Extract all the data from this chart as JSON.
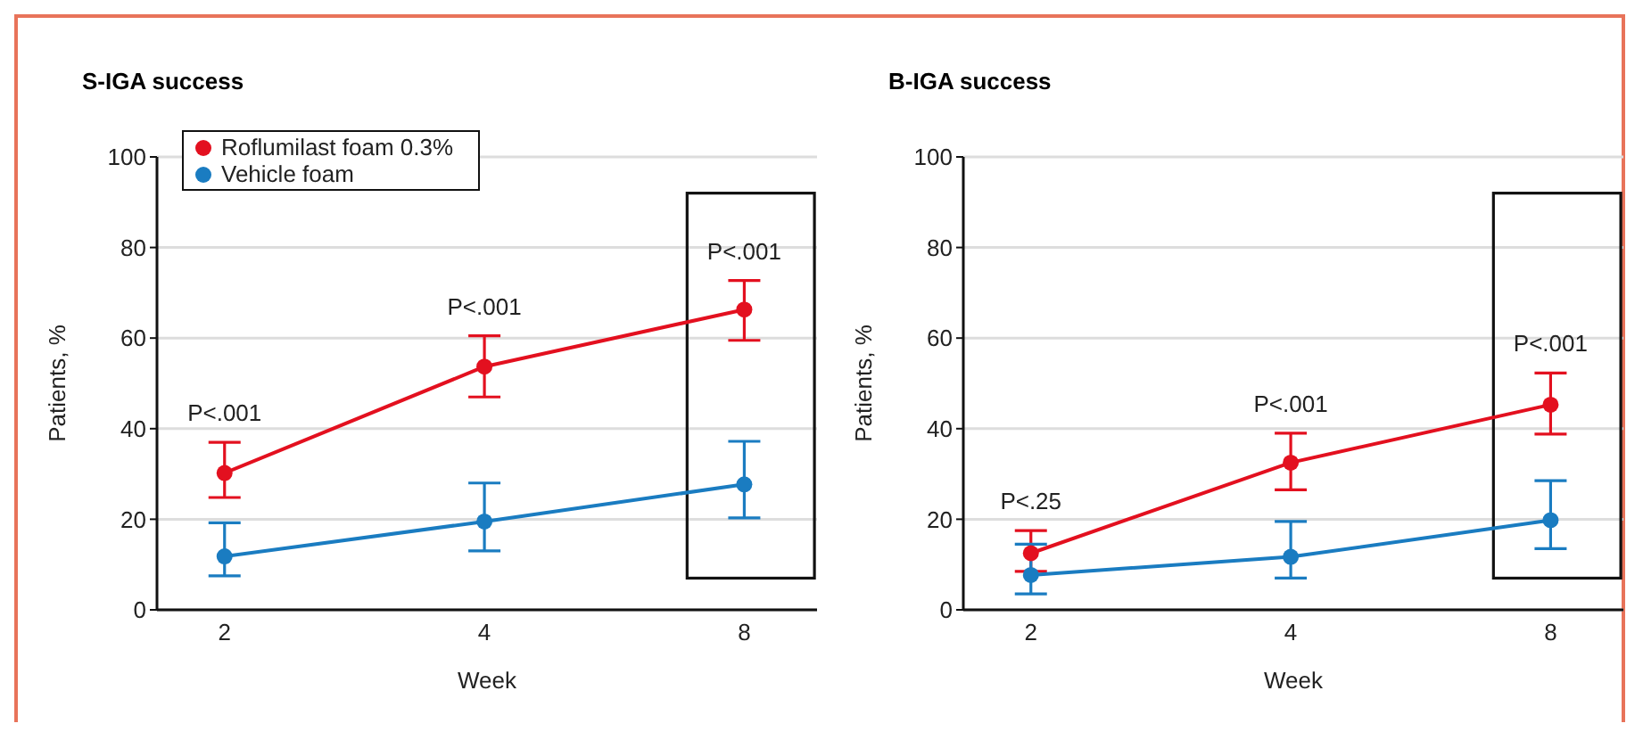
{
  "chart_data": [
    {
      "type": "line",
      "title": "S-IGA success",
      "xlabel": "Week",
      "ylabel": "Patients, %",
      "categories": [
        "2",
        "4",
        "8"
      ],
      "series": [
        {
          "name": "Roflumilast foam 0.3%",
          "color": "#e3101f",
          "values": [
            30.2,
            53.7,
            66.3
          ],
          "errors": [
            [
              24.8,
              37
            ],
            [
              47,
              60.5
            ],
            [
              59.5,
              72.7
            ]
          ]
        },
        {
          "name": "Vehicle foam",
          "color": "#1a7cc1",
          "values": [
            11.8,
            19.5,
            27.7
          ],
          "errors": [
            [
              7.5,
              19.2
            ],
            [
              13,
              28
            ],
            [
              20.3,
              37.2
            ]
          ]
        }
      ],
      "ylim": [
        0,
        100
      ],
      "yticks": [
        0,
        20,
        40,
        60,
        80,
        100
      ],
      "grid": "y",
      "legend": "top left",
      "marker": "circle",
      "line_style": "solid",
      "annotations": [
        "P<.001",
        "P<.001",
        "P<.001"
      ]
    },
    {
      "type": "line",
      "title": "B-IGA success",
      "xlabel": "Week",
      "ylabel": "Patients, %",
      "categories": [
        "2",
        "4",
        "8"
      ],
      "series": [
        {
          "color": "#e3101f",
          "values": [
            12.5,
            32.5,
            45.3
          ],
          "errors": [
            [
              8.5,
              17.5
            ],
            [
              26.5,
              39
            ],
            [
              38.8,
              52.3
            ]
          ]
        },
        {
          "color": "#1a7cc1",
          "values": [
            7.7,
            11.7,
            19.8
          ],
          "errors": [
            [
              3.5,
              14.5
            ],
            [
              7,
              19.5
            ],
            [
              13.5,
              28.5
            ]
          ]
        }
      ],
      "ylim": [
        0,
        100
      ],
      "yticks": [
        0,
        20,
        40,
        60,
        80,
        100
      ],
      "grid": "y",
      "marker": "circle",
      "line_style": "solid",
      "annotations": [
        "P<.25",
        "P<.001",
        "P<.001"
      ]
    }
  ]
}
